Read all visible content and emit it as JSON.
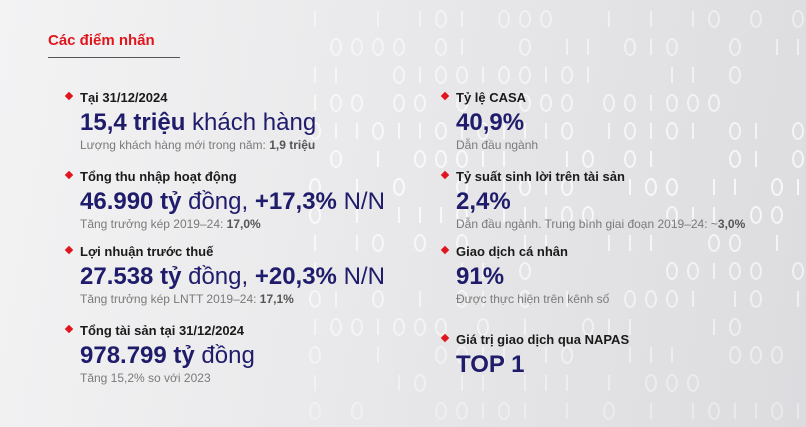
{
  "title": "Các điểm nhấn",
  "left": [
    {
      "label": "Tại 31/12/2024",
      "big_bold": "15,4 triệu",
      "big_rest": " khách hàng",
      "sub": "Lượng khách hàng mới trong năm: ",
      "sub_bold": "1,9 triệu"
    },
    {
      "label": "Tổng thu nhập hoạt động",
      "big_bold": "46.990 tỷ",
      "big_rest": " đồng, ",
      "big_bold2": "+17,3%",
      "big_rest2": " N/N",
      "sub": "Tăng trưởng kép 2019–24: ",
      "sub_bold": "17,0%"
    },
    {
      "label": "Lợi nhuận trước thuế",
      "big_bold": "27.538 tỷ",
      "big_rest": " đồng, ",
      "big_bold2": "+20,3%",
      "big_rest2": " N/N",
      "sub": "Tăng trưởng kép LNTT 2019–24: ",
      "sub_bold": "17,1%"
    },
    {
      "label": "Tổng tài sản tại 31/12/2024",
      "big_bold": "978.799 tỷ",
      "big_rest": " đồng",
      "sub": "Tăng 15,2% so với 2023"
    }
  ],
  "right": [
    {
      "label": "Tỷ lệ CASA",
      "big_bold": "40,9%",
      "sub": "Dẫn đầu ngành"
    },
    {
      "label": "Tỷ suất sinh lời trên tài sản",
      "big_bold": "2,4%",
      "sub": "Dẫn đầu ngành. Trung bình giai đoạn 2019–24: ~",
      "sub_bold": "3,0%"
    },
    {
      "label": "Giao dịch cá nhân",
      "big_bold": "91%",
      "sub": "Được thực hiện trên kênh số"
    },
    {
      "label": "Giá trị giao dịch qua NAPAS",
      "big_bold": "TOP 1"
    }
  ],
  "colors": {
    "accent": "#e0161e",
    "navy": "#1f1c6b"
  }
}
